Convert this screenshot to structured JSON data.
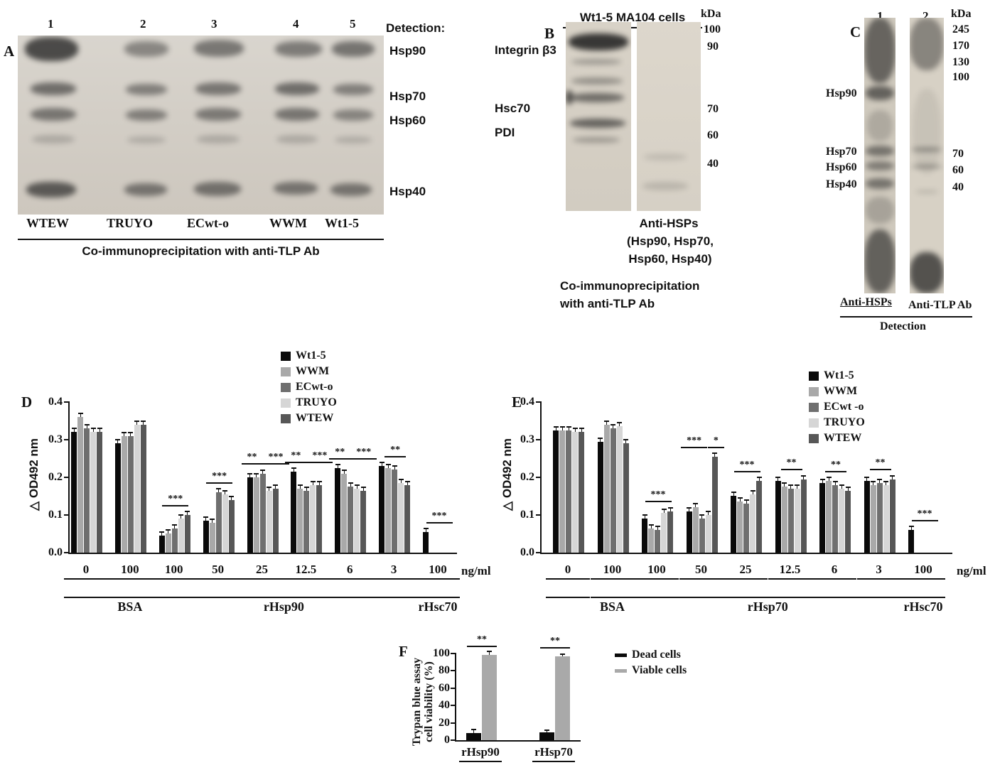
{
  "panelA": {
    "label": "A",
    "lane_numbers": [
      "1",
      "2",
      "3",
      "4",
      "5"
    ],
    "detection_header": "Detection:",
    "band_labels": [
      "Hsp90",
      "Hsp70",
      "Hsp60",
      "Hsp40"
    ],
    "lane_labels": [
      "WTEW",
      "TRUYO",
      "ECwt-o",
      "WWM",
      "Wt1-5"
    ],
    "caption": "Co-immunoprecipitation with anti-TLP Ab"
  },
  "panelB": {
    "label": "B",
    "title": "Wt1-5 MA104 cells",
    "kda_header": "kDa",
    "kda_markers": [
      "100",
      "90",
      "70",
      "60",
      "40"
    ],
    "protein_labels": [
      "Integrin β3",
      "Hsc70",
      "PDI"
    ],
    "antibody_label": "Anti-HSPs",
    "antibody_sublabel_1": "(Hsp90, Hsp70,",
    "antibody_sublabel_2": "Hsp60, Hsp40)",
    "caption_line1": "Co-immunoprecipitation",
    "caption_line2": "with anti-TLP Ab"
  },
  "panelC": {
    "label": "C",
    "lane_numbers": [
      "1",
      "2"
    ],
    "kda_header": "kDa",
    "kda_markers_upper": [
      "245",
      "170",
      "130",
      "100"
    ],
    "kda_markers_lower": [
      "70",
      "60",
      "40"
    ],
    "band_labels": [
      "Hsp90",
      "Hsp70",
      "Hsp60",
      "Hsp40"
    ],
    "lane1_label": "Anti-HSPs",
    "lane2_label": "Anti-TLP Ab",
    "caption": "Detection"
  },
  "chart_data": [
    {
      "panel": "D",
      "type": "bar",
      "ylabel": "△ OD492 nm",
      "xlabel_unit": "ng/ml",
      "ylim": [
        0,
        0.4
      ],
      "yticks": [
        "0.0",
        "0.1",
        "0.2",
        "0.3",
        "0.4"
      ],
      "legend": [
        "Wt1-5",
        "WWM",
        "ECwt-o",
        "TRUYO",
        "WTEW"
      ],
      "series_colors": [
        "#0a0a0a",
        "#a9a9a9",
        "#6f6f6f",
        "#d6d6d6",
        "#575757"
      ],
      "error": 0.008,
      "groups": [
        {
          "label": "0",
          "values": [
            0.32,
            0.36,
            0.33,
            0.32,
            0.32
          ],
          "sigs": []
        },
        {
          "label": "100",
          "values": [
            0.29,
            0.31,
            0.31,
            0.34,
            0.34
          ],
          "sigs": []
        },
        {
          "label": "100",
          "values": [
            0.045,
            0.05,
            0.065,
            0.09,
            0.1
          ],
          "sigs": [
            "***"
          ]
        },
        {
          "label": "50",
          "values": [
            0.085,
            0.08,
            0.16,
            0.155,
            0.14
          ],
          "sigs": [
            "***"
          ]
        },
        {
          "label": "25",
          "values": [
            0.2,
            0.2,
            0.21,
            0.165,
            0.17
          ],
          "sigs": [
            "**",
            "***"
          ]
        },
        {
          "label": "12.5",
          "values": [
            0.215,
            0.17,
            0.165,
            0.18,
            0.18
          ],
          "sigs": [
            "**",
            "***"
          ]
        },
        {
          "label": "6",
          "values": [
            0.225,
            0.21,
            0.175,
            0.17,
            0.165
          ],
          "sigs": [
            "**",
            "***"
          ]
        },
        {
          "label": "3",
          "values": [
            0.23,
            0.225,
            0.22,
            0.185,
            0.18
          ],
          "sigs": [
            "**"
          ]
        },
        {
          "label": "100",
          "values": [
            0.055,
            0,
            0,
            0,
            0
          ],
          "sigs": [
            "***"
          ]
        }
      ],
      "treatments": [
        {
          "label": "",
          "from": 0,
          "to": 0
        },
        {
          "label": "BSA",
          "from": 1,
          "to": 1
        },
        {
          "label": "rHsp90",
          "from": 2,
          "to": 7
        },
        {
          "label": "rHsc70",
          "from": 8,
          "to": 8
        }
      ]
    },
    {
      "panel": "E",
      "type": "bar",
      "ylabel": "△ OD492 nm",
      "xlabel_unit": "ng/ml",
      "ylim": [
        0,
        0.4
      ],
      "yticks": [
        "0.0",
        "0.1",
        "0.2",
        "0.3",
        "0.4"
      ],
      "legend": [
        "Wt1-5",
        "WWM",
        "ECwt -o",
        "TRUYO",
        "WTEW"
      ],
      "series_colors": [
        "#0a0a0a",
        "#a9a9a9",
        "#6f6f6f",
        "#d6d6d6",
        "#575757"
      ],
      "error": 0.008,
      "groups": [
        {
          "label": "0",
          "values": [
            0.325,
            0.325,
            0.325,
            0.32,
            0.32
          ],
          "sigs": []
        },
        {
          "label": "100",
          "values": [
            0.295,
            0.34,
            0.33,
            0.335,
            0.29
          ],
          "sigs": []
        },
        {
          "label": "100",
          "values": [
            0.09,
            0.065,
            0.06,
            0.105,
            0.11
          ],
          "sigs": [
            "***"
          ]
        },
        {
          "label": "50",
          "values": [
            0.11,
            0.12,
            0.09,
            0.1,
            0.255
          ],
          "sigs": [
            "***",
            "*"
          ]
        },
        {
          "label": "25",
          "values": [
            0.15,
            0.135,
            0.13,
            0.155,
            0.19
          ],
          "sigs": [
            "***"
          ]
        },
        {
          "label": "12.5",
          "values": [
            0.19,
            0.175,
            0.17,
            0.17,
            0.195
          ],
          "sigs": [
            "**"
          ]
        },
        {
          "label": "6",
          "values": [
            0.185,
            0.19,
            0.18,
            0.17,
            0.165
          ],
          "sigs": [
            "**"
          ]
        },
        {
          "label": "3",
          "values": [
            0.19,
            0.18,
            0.185,
            0.18,
            0.195
          ],
          "sigs": [
            "**"
          ]
        },
        {
          "label": "100",
          "values": [
            0.06,
            0,
            0,
            0,
            0
          ],
          "sigs": [
            "***"
          ]
        }
      ],
      "treatments": [
        {
          "label": "",
          "from": 0,
          "to": 0
        },
        {
          "label": "BSA",
          "from": 1,
          "to": 1
        },
        {
          "label": "rHsp70",
          "from": 2,
          "to": 7
        },
        {
          "label": "rHsc70",
          "from": 8,
          "to": 8
        }
      ]
    },
    {
      "panel": "F",
      "type": "bar",
      "ylabel_line1": "Trypan blue assay",
      "ylabel_line2": "cell viability  (%)",
      "ylim": [
        0,
        100
      ],
      "yticks": [
        "0",
        "20",
        "40",
        "60",
        "80",
        "100"
      ],
      "legend": [
        "Dead cells",
        "Viable cells"
      ],
      "series_colors": [
        "#0a0a0a",
        "#a9a9a9"
      ],
      "groups": [
        {
          "label": "rHsp90",
          "values": [
            8,
            98
          ],
          "errors": [
            3,
            3
          ],
          "sigs": [
            "**"
          ]
        },
        {
          "label": "rHsp70",
          "values": [
            9,
            97
          ],
          "errors": [
            1.5,
            2
          ],
          "sigs": [
            "**"
          ]
        }
      ]
    }
  ]
}
